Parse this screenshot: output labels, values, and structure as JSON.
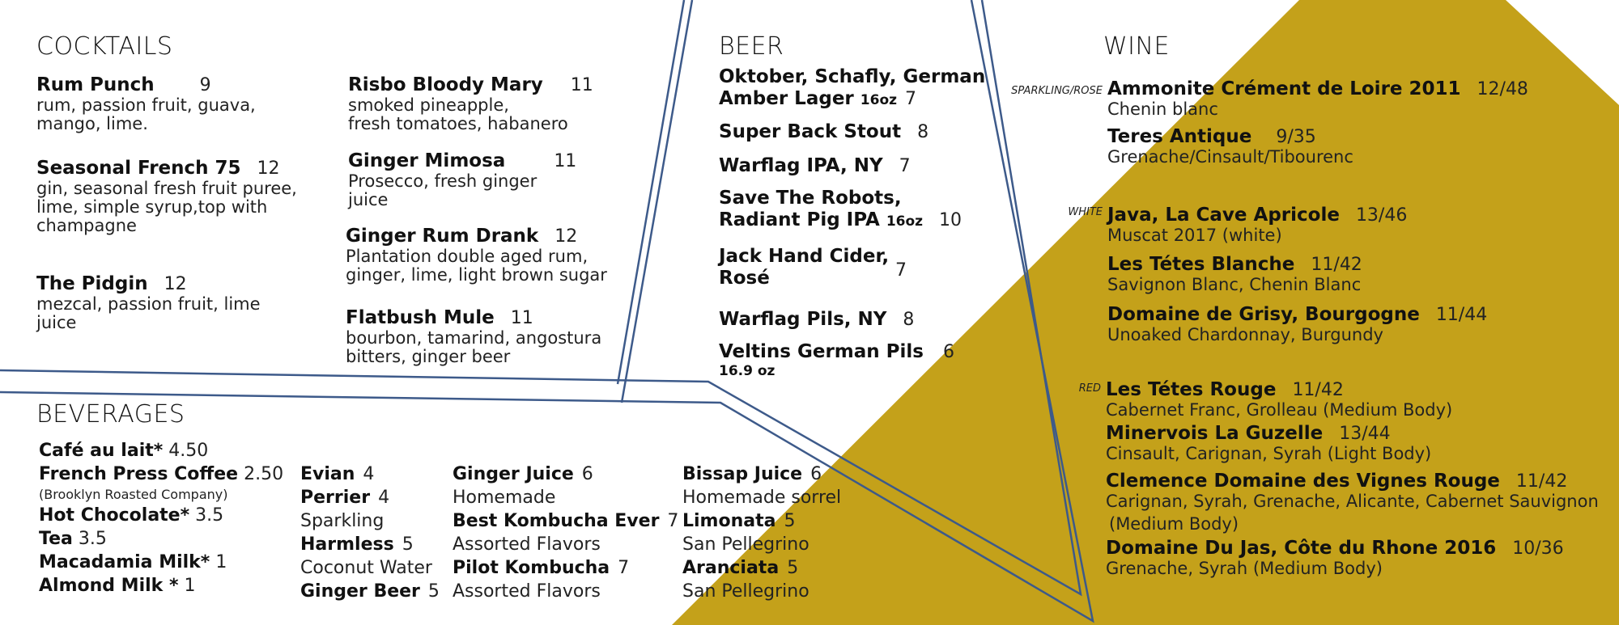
{
  "colors": {
    "gold": "#c4a11a",
    "line": "#3d5a8a",
    "text": "#111111"
  },
  "cocktails": {
    "heading": "COCKTAILS",
    "items": [
      {
        "name": "Rum Punch",
        "price": "9",
        "desc1": "rum, passion fruit, guava,",
        "desc2": "mango, lime.",
        "desc3": ""
      },
      {
        "name": "Seasonal French 75",
        "price": "12",
        "desc1": "gin, seasonal fresh fruit puree,",
        "desc2": "lime, simple syrup,top with",
        "desc3": "champagne"
      },
      {
        "name": "The Pidgin",
        "price": "12",
        "desc1": "mezcal, passion fruit, lime",
        "desc2": "juice",
        "desc3": ""
      },
      {
        "name": "Risbo Bloody Mary",
        "price": "11",
        "desc1": "smoked pineapple,",
        "desc2": "fresh tomatoes, habanero",
        "desc3": ""
      },
      {
        "name": "Ginger Mimosa",
        "price": "11",
        "desc1": "Prosecco, fresh ginger",
        "desc2": "juice",
        "desc3": ""
      },
      {
        "name": "Ginger Rum Drank",
        "price": "12",
        "desc1": "Plantation double aged rum,",
        "desc2": "ginger, lime, light brown sugar",
        "desc3": ""
      },
      {
        "name": "Flatbush Mule",
        "price": "11",
        "desc1": "bourbon, tamarind, angostura",
        "desc2": "bitters, ginger beer",
        "desc3": ""
      }
    ]
  },
  "beer": {
    "heading": "BEER",
    "items": [
      {
        "line1": "Oktober, Schafly, German",
        "line2": "Amber Lager",
        "size": "16oz",
        "price": "7"
      },
      {
        "line1": "Super Back Stout",
        "line2": "",
        "size": "",
        "price": "8"
      },
      {
        "line1": "Warflag IPA, NY",
        "line2": "",
        "size": "",
        "price": "7"
      },
      {
        "line1": "Save The Robots,",
        "line2": "Radiant Pig IPA",
        "size": "16oz",
        "price": "10"
      },
      {
        "line1": "Jack Hand Cider,",
        "line2": "Rosé",
        "size": "",
        "price": "7"
      },
      {
        "line1": "Warflag Pils, NY",
        "line2": "",
        "size": "",
        "price": "8"
      },
      {
        "line1": "Veltins German Pils",
        "line2": "16.9 oz",
        "size": "",
        "price": "6"
      }
    ]
  },
  "wine": {
    "heading": "WINE",
    "tags": {
      "sparkling": "SPARKLING/ROSE",
      "white": "WHITE",
      "red": "RED"
    },
    "items": [
      {
        "name": "Ammonite Crément de Loire 2011",
        "price": "12/48",
        "desc": "Chenin blanc",
        "desc2": ""
      },
      {
        "name": "Teres Antique",
        "price": "9/35",
        "desc": "Grenache/Cinsault/Tibourenc",
        "desc2": ""
      },
      {
        "name": "Java, La Cave Apricole",
        "price": "13/46",
        "desc": "Muscat 2017 (white)",
        "desc2": ""
      },
      {
        "name": "Les Tétes Blanche",
        "price": "11/42",
        "desc": "Savignon Blanc, Chenin Blanc",
        "desc2": ""
      },
      {
        "name": "Domaine de Grisy, Bourgogne",
        "price": "11/44",
        "desc": "Unoaked Chardonnay, Burgundy",
        "desc2": ""
      },
      {
        "name": "Les Tétes Rouge",
        "price": "11/42",
        "desc": "Cabernet Franc, Grolleau (Medium Body)",
        "desc2": ""
      },
      {
        "name": "Minervois La Guzelle",
        "price": "13/44",
        "desc": "Cinsault, Carignan, Syrah (Light Body)",
        "desc2": ""
      },
      {
        "name": "Clemence Domaine des Vignes Rouge",
        "price": "11/42",
        "desc": "Carignan, Syrah, Grenache, Alicante, Cabernet Sauvignon",
        "desc2": "(Medium Body)"
      },
      {
        "name": "Domaine Du Jas, Côte du Rhone 2016",
        "price": "10/36",
        "desc": "Grenache, Syrah (Medium Body)",
        "desc2": ""
      }
    ]
  },
  "beverages": {
    "heading": "BEVERAGES",
    "col1": [
      {
        "name": "Café au lait*",
        "price": "4.50",
        "desc": ""
      },
      {
        "name": "French Press Coffee",
        "price": "2.50",
        "desc": "(Brooklyn Roasted Company)"
      },
      {
        "name": "Hot Chocolate*",
        "price": "3.5",
        "desc": ""
      },
      {
        "name": "Tea",
        "price": "3.5",
        "desc": ""
      },
      {
        "name": "Macadamia Milk*",
        "price": "1",
        "desc": ""
      },
      {
        "name": "Almond Milk *",
        "price": "1",
        "desc": ""
      }
    ],
    "col2": [
      {
        "name": "Evian",
        "price": "4",
        "desc": ""
      },
      {
        "name": "Perrier",
        "price": "4",
        "desc": "Sparkling"
      },
      {
        "name": "Harmless",
        "price": "5",
        "desc": "Coconut Water"
      },
      {
        "name": "Ginger Beer",
        "price": "5",
        "desc": ""
      }
    ],
    "col3": [
      {
        "name": "Ginger Juice",
        "price": "6",
        "desc": "Homemade"
      },
      {
        "name": "Best Kombucha Ever",
        "price": "7",
        "desc": "Assorted Flavors"
      },
      {
        "name": "Pilot Kombucha",
        "price": "7",
        "desc": "Assorted Flavors"
      }
    ],
    "col4": [
      {
        "name": "Bissap Juice",
        "price": "6",
        "desc": "Homemade sorrel"
      },
      {
        "name": "Limonata",
        "price": "5",
        "desc": "San Pellegrino"
      },
      {
        "name": "Aranciata",
        "price": "5",
        "desc": "San Pellegrino"
      }
    ]
  }
}
